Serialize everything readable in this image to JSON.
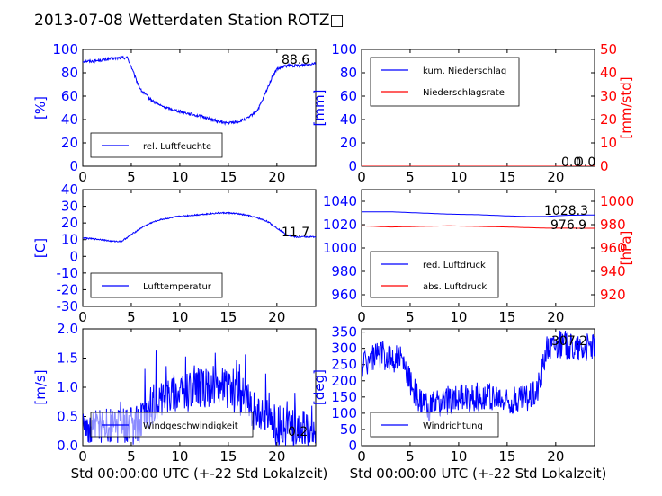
{
  "title": "2013-07-08 Wetterdaten Station ROTZ□",
  "xlabel_common": "Std 00:00:00 UTC (+-22 Std Lokalzeit)",
  "colors": {
    "blue": "#0000ff",
    "red": "#ff0000",
    "black": "#000000"
  },
  "chart_data": [
    {
      "id": "humidity",
      "type": "line",
      "ylabel": "[%]",
      "ylim": [
        0,
        100
      ],
      "yticks": [
        0,
        20,
        40,
        60,
        80,
        100
      ],
      "xlim": [
        0,
        24
      ],
      "xticks": [
        0,
        5,
        10,
        15,
        20
      ],
      "legend": {
        "placement": "lower-left",
        "entries": [
          "rel. Luftfeuchte"
        ]
      },
      "annotations": [
        "88.6"
      ],
      "series": [
        {
          "name": "rel. Luftfeuchte",
          "color": "#0000ff",
          "noise": 1.2,
          "x": [
            0,
            1,
            2,
            3,
            4,
            4.6,
            5,
            5.5,
            6,
            7,
            8,
            9,
            10,
            11,
            12,
            13,
            14,
            15,
            16,
            17,
            18,
            18.5,
            19,
            19.5,
            20,
            21,
            22,
            23,
            24
          ],
          "y": [
            90,
            90,
            91,
            92,
            93,
            93,
            85,
            74,
            65,
            57,
            52,
            49,
            47,
            45,
            43,
            41,
            38,
            37,
            38,
            41,
            48,
            56,
            66,
            76,
            83,
            86,
            86,
            87,
            88.6
          ]
        }
      ]
    },
    {
      "id": "precip",
      "type": "line",
      "ylabel": "[mm]",
      "ylim": [
        0,
        100
      ],
      "yticks": [
        0,
        20,
        40,
        60,
        80,
        100
      ],
      "y2label": "[mm/std]",
      "y2lim": [
        0,
        50
      ],
      "y2ticks": [
        0,
        10,
        20,
        30,
        40,
        50
      ],
      "xlim": [
        0,
        24
      ],
      "xticks": [
        0,
        5,
        10,
        15,
        20
      ],
      "legend": {
        "placement": "upper-left",
        "entries": [
          "kum. Niederschlag",
          "Niederschlagsrate"
        ]
      },
      "annotations": [
        "0.0",
        "0.0"
      ],
      "series": [
        {
          "name": "kum. Niederschlag",
          "color": "#0000ff",
          "axis": "left",
          "noise": 0,
          "x": [
            0,
            24
          ],
          "y": [
            0,
            0
          ]
        },
        {
          "name": "Niederschlagsrate",
          "color": "#ff0000",
          "axis": "right",
          "noise": 0,
          "x": [
            0,
            24
          ],
          "y": [
            0,
            0
          ]
        }
      ]
    },
    {
      "id": "temperature",
      "type": "line",
      "ylabel": "[C]",
      "ylim": [
        -30,
        40
      ],
      "yticks": [
        -30,
        -20,
        -10,
        0,
        10,
        20,
        30,
        40
      ],
      "xlim": [
        0,
        24
      ],
      "xticks": [
        0,
        5,
        10,
        15,
        20
      ],
      "legend": {
        "placement": "lower-left",
        "entries": [
          "Lufttemperatur"
        ]
      },
      "annotations": [
        "11.7"
      ],
      "series": [
        {
          "name": "Lufttemperatur",
          "color": "#0000ff",
          "noise": 0.4,
          "x": [
            0,
            1,
            2,
            3,
            4,
            5,
            6,
            7,
            8,
            9,
            10,
            11,
            12,
            13,
            14,
            15,
            16,
            17,
            18,
            19,
            20,
            21,
            22,
            23,
            24
          ],
          "y": [
            11,
            10.5,
            10,
            9,
            9,
            13,
            17,
            20,
            22,
            23,
            24,
            24.5,
            25,
            25.5,
            26,
            26,
            25.5,
            24.5,
            23,
            21,
            17,
            13,
            11.5,
            11.7,
            11.7
          ]
        }
      ]
    },
    {
      "id": "pressure",
      "type": "line",
      "ylim": [
        950,
        1050
      ],
      "yticks": [
        960,
        980,
        1000,
        1020,
        1040
      ],
      "y2label": "[hPa]",
      "y2lim": [
        910,
        1010
      ],
      "y2ticks": [
        920,
        940,
        960,
        980,
        1000
      ],
      "xlim": [
        0,
        24
      ],
      "xticks": [
        0,
        5,
        10,
        15,
        20
      ],
      "legend": {
        "placement": "lower-left",
        "entries": [
          "red. Luftdruck",
          "abs. Luftdruck"
        ]
      },
      "annotations": [
        "1028.3",
        "976.9"
      ],
      "series": [
        {
          "name": "red. Luftdruck",
          "color": "#0000ff",
          "axis": "left",
          "noise": 0,
          "x": [
            0,
            3,
            6,
            9,
            12,
            15,
            17,
            19,
            21,
            24
          ],
          "y": [
            1031,
            1031,
            1030,
            1029,
            1028.5,
            1027.5,
            1027,
            1027,
            1028,
            1028.3
          ]
        },
        {
          "name": "abs. Luftdruck",
          "color": "#ff0000",
          "axis": "right",
          "noise": 0,
          "x": [
            0,
            3,
            6,
            9,
            12,
            15,
            17,
            19,
            21,
            24
          ],
          "y": [
            979,
            978,
            978.5,
            979,
            978.5,
            978,
            977.5,
            977,
            977,
            976.9
          ]
        }
      ]
    },
    {
      "id": "wind-speed",
      "type": "line",
      "ylabel": "[m/s]",
      "ylim": [
        0,
        2.0
      ],
      "yticks": [
        0.0,
        0.5,
        1.0,
        1.5,
        2.0
      ],
      "xlim": [
        0,
        24
      ],
      "xticks": [
        0,
        5,
        10,
        15,
        20
      ],
      "xlabel": "Std 00:00:00 UTC (+-22 Std Lokalzeit)",
      "legend": {
        "placement": "lower-left",
        "entries": [
          "Windgeschwindigkeit"
        ]
      },
      "annotations": [
        "0.2"
      ],
      "series": [
        {
          "name": "Windgeschwindigkeit",
          "color": "#0000ff",
          "noise": 0.35,
          "x": [
            0,
            2,
            4,
            5,
            6,
            7,
            8,
            9,
            10,
            11,
            12,
            13,
            14,
            15,
            16,
            17,
            18,
            19,
            20,
            21,
            22,
            23,
            24
          ],
          "y": [
            0.25,
            0.28,
            0.3,
            0.35,
            0.4,
            0.65,
            0.85,
            0.9,
            0.95,
            0.9,
            1.0,
            1.0,
            1.05,
            0.95,
            0.85,
            0.75,
            0.55,
            0.45,
            0.35,
            0.3,
            0.28,
            0.25,
            0.2
          ]
        }
      ]
    },
    {
      "id": "wind-direction",
      "type": "line",
      "ylabel": "[deg]",
      "ylim": [
        0,
        360
      ],
      "yticks": [
        0,
        50,
        100,
        150,
        200,
        250,
        300,
        350
      ],
      "xlim": [
        0,
        24
      ],
      "xticks": [
        0,
        5,
        10,
        15,
        20
      ],
      "xlabel": "Std 00:00:00 UTC (+-22 Std Lokalzeit)",
      "legend": {
        "placement": "lower-left",
        "entries": [
          "Windrichtung"
        ]
      },
      "annotations": [
        "307.2"
      ],
      "series": [
        {
          "name": "Windrichtung",
          "color": "#0000ff",
          "noise": 45,
          "x": [
            0,
            1,
            2,
            3,
            4,
            5,
            6,
            7,
            8,
            9,
            10,
            11,
            12,
            13,
            14,
            15,
            16,
            17,
            18,
            18.5,
            19,
            20,
            21,
            22,
            23,
            24
          ],
          "y": [
            250,
            270,
            280,
            270,
            270,
            200,
            130,
            120,
            130,
            140,
            150,
            145,
            150,
            155,
            140,
            135,
            140,
            150,
            165,
            220,
            300,
            315,
            310,
            305,
            300,
            307
          ]
        }
      ]
    }
  ]
}
